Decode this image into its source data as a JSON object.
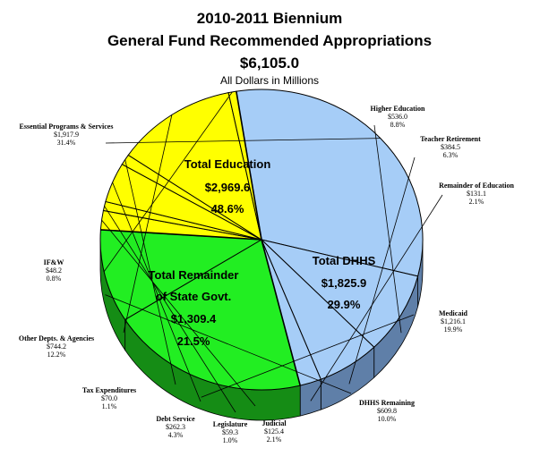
{
  "chart_data": {
    "type": "pie",
    "title": "2010-2011 Biennium",
    "subtitle": "General Fund Recommended Appropriations",
    "total": "$6,105.0",
    "units_note": "All Dollars in Millions",
    "slices": [
      {
        "name": "Essential Programs & Services",
        "value": 1917.9,
        "value_label": "$1,917.9",
        "pct_label": "31.4%",
        "group": 0
      },
      {
        "name": "Higher Education",
        "value": 536.0,
        "value_label": "$536.0",
        "pct_label": "8.8%",
        "group": 0
      },
      {
        "name": "Teacher Retirement",
        "value": 384.5,
        "value_label": "$384.5",
        "pct_label": "6.3%",
        "group": 0
      },
      {
        "name": "Remainder of Education",
        "value": 131.1,
        "value_label": "$131.1",
        "pct_label": "2.1%",
        "group": 0
      },
      {
        "name": "Medicaid",
        "value": 1216.1,
        "value_label": "$1,216.1",
        "pct_label": "19.9%",
        "group": 1
      },
      {
        "name": "DHHS Remaining",
        "value": 609.8,
        "value_label": "$609.8",
        "pct_label": "10.0%",
        "group": 1
      },
      {
        "name": "Judicial",
        "value": 125.4,
        "value_label": "$125.4",
        "pct_label": "2.1%",
        "group": 2
      },
      {
        "name": "Legislature",
        "value": 59.3,
        "value_label": "$59.3",
        "pct_label": "1.0%",
        "group": 2
      },
      {
        "name": "Debt Service",
        "value": 262.3,
        "value_label": "$262.3",
        "pct_label": "4.3%",
        "group": 2
      },
      {
        "name": "Tax Expenditures",
        "value": 70.0,
        "value_label": "$70.0",
        "pct_label": "1.1%",
        "group": 2
      },
      {
        "name": "Other Depts. & Agencies",
        "value": 744.2,
        "value_label": "$744.2",
        "pct_label": "12.2%",
        "group": 2
      },
      {
        "name": "IF&W",
        "value": 48.2,
        "value_label": "$48.2",
        "pct_label": "0.8%",
        "group": 2
      }
    ],
    "groups": [
      {
        "name": "Total Education",
        "value": 2969.6,
        "value_label": "$2,969.6",
        "pct_label": "48.6%",
        "color": "#a6cdf7",
        "side_color": "#5f7fa8"
      },
      {
        "name": "Total DHHS",
        "value": 1825.9,
        "value_label": "$1,825.9",
        "pct_label": "29.9%",
        "color": "#22ee22",
        "side_color": "#158c15"
      },
      {
        "name": "Total Remainder of State Govt.",
        "name_line1": "Total Remainder",
        "name_line2": "of State Govt.",
        "value": 1309.4,
        "value_label": "$1,309.4",
        "pct_label": "21.5%",
        "color": "#ffff00",
        "side_color": "#8a8a00"
      }
    ]
  }
}
